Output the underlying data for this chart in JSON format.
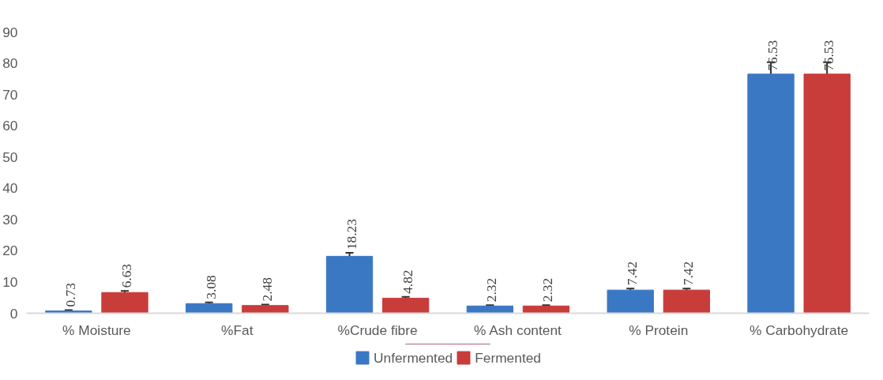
{
  "chart_data": {
    "type": "bar",
    "categories": [
      "% Moisture",
      "%Fat",
      "%Crude fibre",
      "% Ash content",
      "% Protein",
      "% Carbohydrate"
    ],
    "series": [
      {
        "name": "Unfermented",
        "color": "#3a78c4",
        "values": [
          0.73,
          3.08,
          18.23,
          2.32,
          7.42,
          76.53
        ],
        "errors": [
          0.3,
          0.4,
          1.1,
          0.3,
          0.5,
          3.8
        ]
      },
      {
        "name": "Fermented",
        "color": "#c83c3a",
        "values": [
          6.63,
          2.48,
          4.82,
          2.32,
          7.42,
          76.53
        ],
        "errors": [
          0.5,
          0.3,
          0.4,
          0.3,
          0.5,
          3.8
        ]
      }
    ],
    "ylim": [
      0,
      90
    ],
    "yticks": [
      0,
      10,
      20,
      30,
      40,
      50,
      60,
      70,
      80,
      90
    ],
    "data_labels": true,
    "grid": false,
    "legend": "bottom"
  }
}
